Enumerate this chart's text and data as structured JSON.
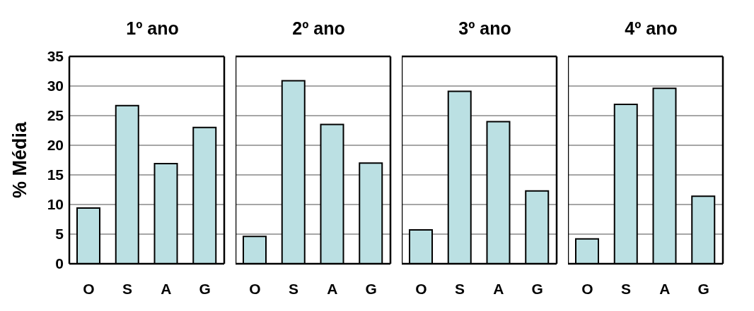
{
  "chart_data": [
    {
      "type": "bar",
      "title": "1º ano",
      "ylabel": "% Média",
      "categories": [
        "O",
        "S",
        "A",
        "G"
      ],
      "values": [
        9.4,
        26.7,
        16.9,
        23.0
      ],
      "color": "#bbe0e3",
      "ylim": [
        0,
        35
      ],
      "yticks": [
        0,
        5,
        10,
        15,
        20,
        25,
        30,
        35
      ],
      "grid": "y"
    },
    {
      "type": "bar",
      "title": "2º ano",
      "categories": [
        "O",
        "S",
        "A",
        "G"
      ],
      "values": [
        4.6,
        30.9,
        23.5,
        17.0
      ],
      "color": "#bbe0e3",
      "ylim": [
        0,
        35
      ],
      "yticks": [
        0,
        5,
        10,
        15,
        20,
        25,
        30,
        35
      ],
      "grid": "y",
      "tick_labels": "x"
    },
    {
      "type": "bar",
      "title": "3º ano",
      "categories": [
        "O",
        "S",
        "A",
        "G"
      ],
      "values": [
        5.7,
        29.1,
        24.0,
        12.3
      ],
      "color": "#bbe0e3",
      "ylim": [
        0,
        35
      ],
      "yticks": [
        0,
        5,
        10,
        15,
        20,
        25,
        30,
        35
      ],
      "grid": "y",
      "tick_labels": "x"
    },
    {
      "type": "bar",
      "title": "4º ano",
      "categories": [
        "O",
        "S",
        "A",
        "G"
      ],
      "values": [
        4.2,
        26.9,
        29.6,
        11.4
      ],
      "color": "#bbe0e3",
      "ylim": [
        0,
        35
      ],
      "yticks": [
        0,
        5,
        10,
        15,
        20,
        25,
        30,
        35
      ],
      "grid": "y",
      "tick_labels": "x"
    }
  ]
}
